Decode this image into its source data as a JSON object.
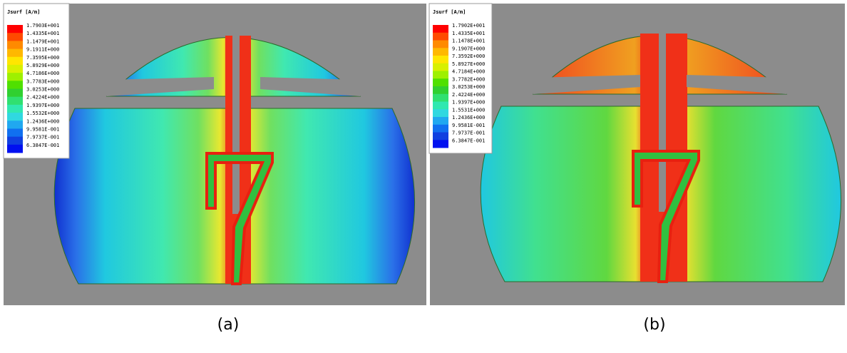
{
  "panels": [
    {
      "legend": {
        "title": "Jsurf [A/m]",
        "values": [
          "1.7903E+001",
          "1.4335E+001",
          "1.1479E+001",
          "9.1911E+000",
          "7.3595E+000",
          "5.8929E+000",
          "4.7186E+000",
          "3.7783E+000",
          "3.0253E+000",
          "2.4224E+000",
          "1.9397E+000",
          "1.5532E+000",
          "1.2436E+000",
          "9.9581E-001",
          "7.9737E-001",
          "6.3847E-001"
        ]
      },
      "caption": "(a)"
    },
    {
      "legend": {
        "title": "Jsurf [A/m]",
        "values": [
          "1.7902E+001",
          "1.4335E+001",
          "1.1478E+001",
          "9.1907E+000",
          "7.3592E+000",
          "5.8927E+000",
          "4.7184E+000",
          "3.7782E+000",
          "3.0253E+000",
          "2.4224E+000",
          "1.9397E+000",
          "1.5531E+000",
          "1.2436E+000",
          "9.9581E-001",
          "7.9737E-001",
          "6.3847E-001"
        ]
      },
      "caption": "(b)"
    }
  ]
}
